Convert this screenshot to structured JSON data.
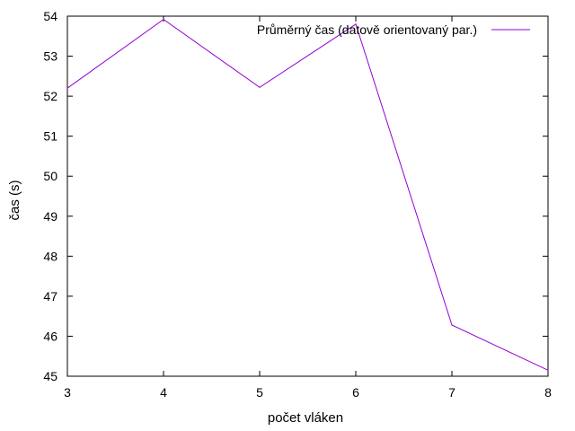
{
  "chart_data": {
    "type": "line",
    "xlabel": "počet vláken",
    "ylabel": "čas (s)",
    "xlim": [
      3,
      8
    ],
    "ylim": [
      45,
      54
    ],
    "x_ticks": [
      "3",
      "4",
      "5",
      "6",
      "7",
      "8"
    ],
    "y_ticks": [
      "45",
      "46",
      "47",
      "48",
      "49",
      "50",
      "51",
      "52",
      "53",
      "54"
    ],
    "grid": false,
    "legend_position": "top-right",
    "series": [
      {
        "name": "Průměrný čas (datově orientovaný par.)",
        "color": "#9400d3",
        "x": [
          3,
          4,
          5,
          6,
          7,
          8
        ],
        "y": [
          52.2,
          53.92,
          52.22,
          53.8,
          46.28,
          45.15
        ]
      }
    ]
  }
}
